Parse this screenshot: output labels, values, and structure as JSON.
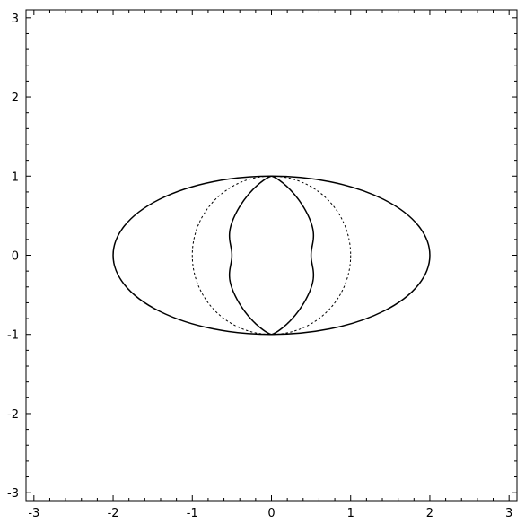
{
  "chart_data": {
    "type": "line",
    "title": "",
    "xlabel": "",
    "ylabel": "",
    "xlim": [
      -3.1,
      3.1
    ],
    "ylim": [
      -3.1,
      3.1
    ],
    "grid": false,
    "x_ticks": [
      -3,
      -2,
      -1,
      0,
      1,
      2,
      3
    ],
    "y_ticks": [
      -3,
      -2,
      -1,
      0,
      1,
      2,
      3
    ],
    "x_tick_labels": [
      "-3",
      "-2",
      "-1",
      "0",
      "1",
      "2",
      "3"
    ],
    "y_tick_labels": [
      "-3",
      "-2",
      "-1",
      "0",
      "1",
      "2",
      "3"
    ],
    "series": [
      {
        "shape": "ellipse",
        "center": [
          0,
          0
        ],
        "semi_axis_x": 2,
        "semi_axis_y": 1,
        "style": "solid",
        "color": "#000000"
      },
      {
        "shape": "circle",
        "center": [
          0,
          0
        ],
        "radius": 1,
        "style": "dotted",
        "color": "#000000"
      },
      {
        "shape": "peanut",
        "center": [
          0,
          0
        ],
        "half_height": 1,
        "max_half_width": 0.58,
        "waist_half_width": 0.5,
        "style": "solid",
        "color": "#000000"
      }
    ]
  }
}
